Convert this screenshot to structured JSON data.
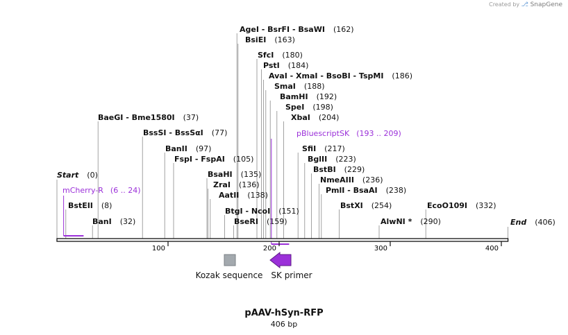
{
  "credit": {
    "prefix": "Created by",
    "brand": "SnapGene",
    "logo_icon": "snapgene-logo-icon"
  },
  "plasmid": {
    "name": "pAAV-hSyn-RFP",
    "length_label": "406 bp",
    "length": 406
  },
  "colors": {
    "enzyme": "#111111",
    "feature": "#9b30d9",
    "primer": "#9b30d9",
    "kozak": "#a3a9ae",
    "leader": "#8a8a8a",
    "axis": "#111111"
  },
  "axis_ticks": [
    "100",
    "200",
    "300",
    "400"
  ],
  "enzymes": [
    {
      "label": "AgeI  - BsrFI  - BsaWI",
      "site": "(162)",
      "pos": 162
    },
    {
      "label": "BsiEI",
      "site": "(163)",
      "pos": 163
    },
    {
      "label": "SfcI",
      "site": "(180)",
      "pos": 180
    },
    {
      "label": "PstI",
      "site": "(184)",
      "pos": 184
    },
    {
      "label": "AvaI  - XmaI  - BsoBI  - TspMI",
      "site": "(186)",
      "pos": 186
    },
    {
      "label": "SmaI",
      "site": "(188)",
      "pos": 188
    },
    {
      "label": "BamHI",
      "site": "(192)",
      "pos": 192
    },
    {
      "label": "SpeI",
      "site": "(198)",
      "pos": 198
    },
    {
      "label": "XbaI",
      "site": "(204)",
      "pos": 204
    },
    {
      "label": "BaeGI  - Bme1580I",
      "site": "(37)",
      "pos": 37
    },
    {
      "label": "BssSI  - BssSαI",
      "site": "(77)",
      "pos": 77
    },
    {
      "label": "BanII",
      "site": "(97)",
      "pos": 97
    },
    {
      "label": "FspI  - FspAI",
      "site": "(105)",
      "pos": 105
    },
    {
      "label": "SfiI",
      "site": "(217)",
      "pos": 217
    },
    {
      "label": "BglII",
      "site": "(223)",
      "pos": 223
    },
    {
      "label": "BstBI",
      "site": "(229)",
      "pos": 229
    },
    {
      "label": "BsaHI",
      "site": "(135)",
      "pos": 135
    },
    {
      "label": "NmeAIII",
      "site": "(236)",
      "pos": 236
    },
    {
      "label": "ZraI",
      "site": "(136)",
      "pos": 136
    },
    {
      "label": "PmlI  - BsaAI",
      "site": "(238)",
      "pos": 238
    },
    {
      "label": "AatII",
      "site": "(138)",
      "pos": 138
    },
    {
      "label": "BstEII",
      "site": "(8)",
      "pos": 8
    },
    {
      "label": "BstXI",
      "site": "(254)",
      "pos": 254
    },
    {
      "label": "EcoO109I",
      "site": "(332)",
      "pos": 332
    },
    {
      "label": "BtgI  - NcoI",
      "site": "(151)",
      "pos": 151
    },
    {
      "label": "BanI",
      "site": "(32)",
      "pos": 32
    },
    {
      "label": "BseRI",
      "site": "(159)",
      "pos": 159
    },
    {
      "label": "AlwNI *",
      "site": "(290)",
      "pos": 290
    }
  ],
  "ends": [
    {
      "label": "Start",
      "site": "(0)",
      "pos": 0
    },
    {
      "label": "End",
      "site": "(406)",
      "pos": 406
    }
  ],
  "features": [
    {
      "label": "mCherry-R",
      "range": "(6 .. 24)",
      "start": 6,
      "end": 24
    },
    {
      "label": "pBluescriptSK",
      "range": "(193 .. 209)",
      "start": 193,
      "end": 209
    }
  ],
  "annotations": [
    {
      "label": "Kozak sequence",
      "type": "box",
      "pos": 155
    },
    {
      "label": "SK primer",
      "type": "arrow-left",
      "pos": 201
    }
  ]
}
